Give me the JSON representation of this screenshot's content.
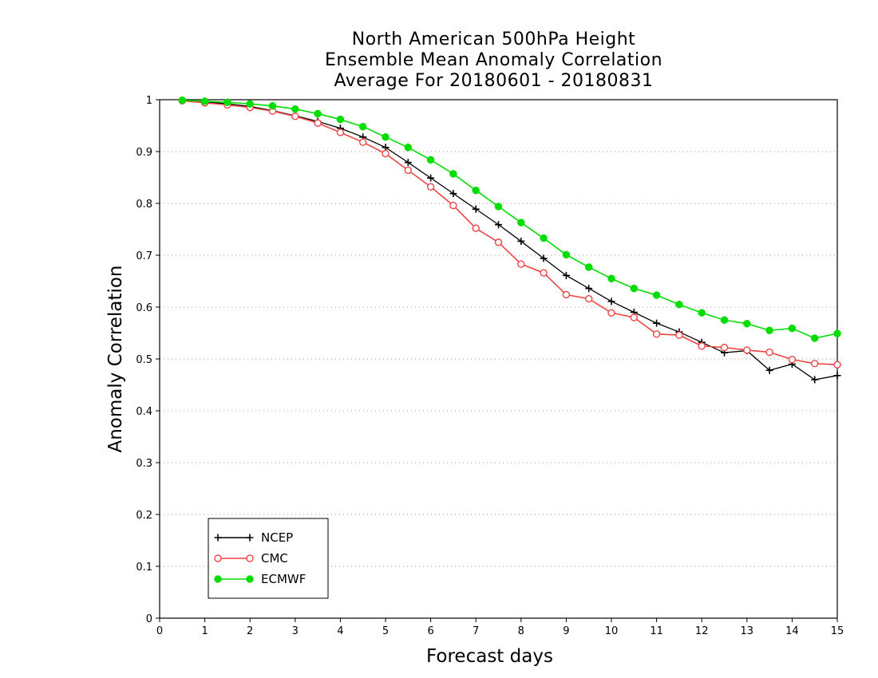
{
  "chart_data": {
    "type": "line",
    "title": [
      "North American 500hPa Height",
      "Ensemble Mean Anomaly Correlation",
      "Average For 20180601 - 20180831"
    ],
    "xlabel": "Forecast days",
    "ylabel": "Anomaly Correlation",
    "xlim": [
      0,
      15
    ],
    "ylim": [
      0,
      1
    ],
    "xticks": [
      "0",
      "1",
      "2",
      "3",
      "4",
      "5",
      "6",
      "7",
      "8",
      "9",
      "10",
      "11",
      "12",
      "13",
      "14",
      "15"
    ],
    "yticks": [
      "0",
      "0.1",
      "0.2",
      "0.3",
      "0.4",
      "0.5",
      "0.6",
      "0.7",
      "0.8",
      "0.9",
      "1"
    ],
    "grid": "horizontal dotted",
    "legend_position": "bottom-left",
    "x": [
      0.5,
      1,
      1.5,
      2,
      2.5,
      3,
      3.5,
      4,
      4.5,
      5,
      5.5,
      6,
      6.5,
      7,
      7.5,
      8,
      8.5,
      9,
      9.5,
      10,
      10.5,
      11,
      11.5,
      12,
      12.5,
      13,
      13.5,
      14,
      14.5,
      15
    ],
    "series": [
      {
        "name": "NCEP",
        "color": "#000000",
        "marker": "plus",
        "values": [
          0.998,
          0.996,
          0.992,
          0.987,
          0.979,
          0.969,
          0.958,
          0.945,
          0.928,
          0.908,
          0.879,
          0.849,
          0.819,
          0.789,
          0.759,
          0.727,
          0.694,
          0.661,
          0.636,
          0.611,
          0.59,
          0.569,
          0.552,
          0.532,
          0.512,
          0.516,
          0.478,
          0.49,
          0.46,
          0.468
        ]
      },
      {
        "name": "CMC",
        "color": "#ee4444",
        "marker": "open-circle",
        "values": [
          0.998,
          0.994,
          0.99,
          0.985,
          0.978,
          0.968,
          0.955,
          0.937,
          0.918,
          0.896,
          0.864,
          0.832,
          0.796,
          0.752,
          0.725,
          0.683,
          0.666,
          0.624,
          0.616,
          0.589,
          0.58,
          0.548,
          0.546,
          0.525,
          0.522,
          0.517,
          0.513,
          0.499,
          0.491,
          0.489
        ]
      },
      {
        "name": "ECMWF",
        "color": "#00dd00",
        "marker": "filled-circle",
        "values": [
          0.999,
          0.997,
          0.995,
          0.992,
          0.988,
          0.982,
          0.973,
          0.962,
          0.948,
          0.928,
          0.908,
          0.884,
          0.857,
          0.825,
          0.794,
          0.763,
          0.733,
          0.701,
          0.677,
          0.655,
          0.636,
          0.623,
          0.605,
          0.589,
          0.575,
          0.568,
          0.555,
          0.559,
          0.54,
          0.549
        ]
      }
    ]
  }
}
